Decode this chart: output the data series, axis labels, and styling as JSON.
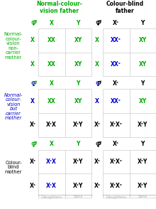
{
  "green": "#00aa00",
  "blue": "#0000cc",
  "black": "#000000",
  "gray": "#aaaaaa",
  "lightgray": "#cccccc",
  "bg": "#ffffff",
  "sections": [
    {
      "label": "Normal-\ncolour-\nvision\nnon-\ncarrier\nmother",
      "label_color": "green",
      "label_italic": false,
      "left_male_color": "green",
      "right_male_color": "black",
      "left_female_color": "green",
      "right_female_color": "black",
      "left_col_headers": [
        "X",
        "Y"
      ],
      "left_col_colors": [
        "green",
        "green"
      ],
      "left_row_headers": [
        "X",
        "X"
      ],
      "left_row_colors": [
        "green",
        "green"
      ],
      "left_cells": [
        [
          "XX",
          "XY"
        ],
        [
          "XX",
          "XY"
        ]
      ],
      "left_cell_colors": [
        [
          "green",
          "green"
        ],
        [
          "green",
          "green"
        ]
      ],
      "right_col_headers": [
        "Xᶜ",
        "Y"
      ],
      "right_col_colors": [
        "black",
        "black"
      ],
      "right_row_headers": [
        "X",
        "X"
      ],
      "right_row_colors": [
        "green",
        "green"
      ],
      "right_cells": [
        [
          "XXᶜ",
          "XY"
        ],
        [
          "XXᶜ",
          "XY"
        ]
      ],
      "right_cell_colors": [
        [
          "blue",
          "green"
        ],
        [
          "blue",
          "green"
        ]
      ]
    },
    {
      "label": "Normal-\ncolour-\nvision\nbut\ncarrier\nmother",
      "label_color": "blue",
      "label_italic": true,
      "left_male_color": "green",
      "right_male_color": "black",
      "left_female_color": "blue",
      "right_female_color": "blue",
      "left_col_headers": [
        "X",
        "Y"
      ],
      "left_col_colors": [
        "green",
        "green"
      ],
      "left_row_headers": [
        "X",
        "Xᶜ"
      ],
      "left_row_colors": [
        "blue",
        "black"
      ],
      "left_cells": [
        [
          "XX",
          "XY"
        ],
        [
          "XᶜX",
          "XᶜY"
        ]
      ],
      "left_cell_colors": [
        [
          "green",
          "green"
        ],
        [
          "black",
          "black"
        ]
      ],
      "right_col_headers": [
        "Xᶜ",
        "Y"
      ],
      "right_col_colors": [
        "black",
        "black"
      ],
      "right_row_headers": [
        "X",
        "Xᶜ"
      ],
      "right_row_colors": [
        "blue",
        "black"
      ],
      "right_cells": [
        [
          "XXᶜ",
          "XY"
        ],
        [
          "XᶜXᶜ",
          "XᶜY"
        ]
      ],
      "right_cell_colors": [
        [
          "blue",
          "green"
        ],
        [
          "black",
          "black"
        ]
      ]
    },
    {
      "label": "Colour-\nblind\nmother",
      "label_color": "black",
      "label_italic": false,
      "left_male_color": "green",
      "right_male_color": "black",
      "left_female_color": "green",
      "right_female_color": "black",
      "left_col_headers": [
        "X",
        "Y"
      ],
      "left_col_colors": [
        "green",
        "green"
      ],
      "left_row_headers": [
        "Xᶜ",
        "Xᶜ"
      ],
      "left_row_colors": [
        "black",
        "black"
      ],
      "left_cells": [
        [
          "XᶜX",
          "XᶜY"
        ],
        [
          "XᶜX",
          "XᶜY"
        ]
      ],
      "left_cell_colors": [
        [
          "blue",
          "black"
        ],
        [
          "blue",
          "black"
        ]
      ],
      "right_col_headers": [
        "Xᶜ",
        "Y"
      ],
      "right_col_colors": [
        "black",
        "black"
      ],
      "right_row_headers": [
        "Xᶜ",
        "Xᶜ"
      ],
      "right_row_colors": [
        "black",
        "black"
      ],
      "right_cells": [
        [
          "XᶜXᶜ",
          "XᶜY"
        ],
        [
          "XᶜXᶜ",
          "XᶜY"
        ]
      ],
      "right_cell_colors": [
        [
          "black",
          "black"
        ],
        [
          "black",
          "black"
        ]
      ]
    }
  ]
}
